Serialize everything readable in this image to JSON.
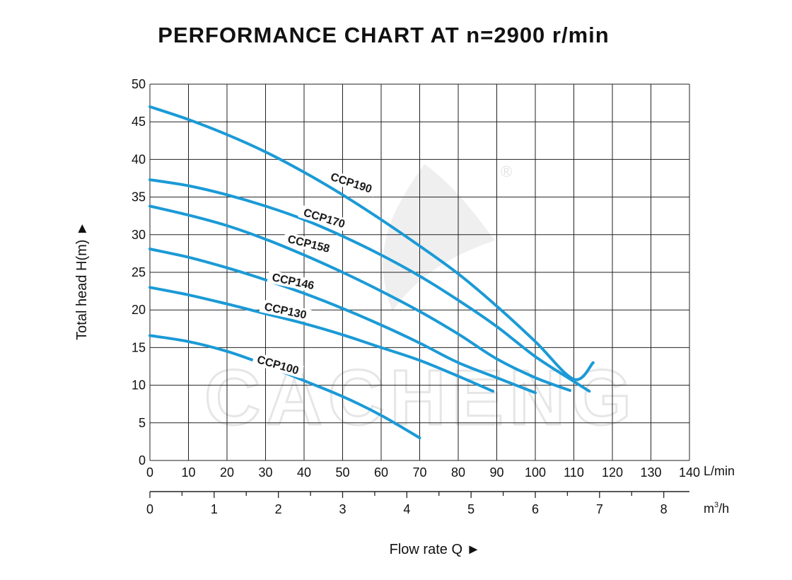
{
  "chart_data": {
    "type": "line",
    "title": "PERFORMANCE CHART AT n=2900 r/min",
    "xlabel": "Flow rate  Q ►",
    "ylabel": "Total  head H(m) ►",
    "x_unit_primary": "L/min",
    "x_unit_secondary_base": "m",
    "x_unit_secondary_sup": "3",
    "x_unit_secondary_tail": "/h",
    "xlim": [
      0,
      140
    ],
    "ylim": [
      0,
      50
    ],
    "x_ticks": [
      0,
      10,
      20,
      30,
      40,
      50,
      60,
      70,
      80,
      90,
      100,
      110,
      120,
      130,
      140
    ],
    "y_ticks": [
      0,
      5,
      10,
      15,
      20,
      25,
      30,
      35,
      40,
      45,
      50
    ],
    "secondary_ticks": [
      0,
      1,
      2,
      3,
      4,
      5,
      6,
      7,
      8
    ],
    "secondary_per_primary": 0.06,
    "grid": true,
    "watermark_text": "CACHENG",
    "watermark_mark": "®",
    "line_color": "#1b9ad6",
    "series": [
      {
        "name": "CCP190",
        "x": [
          0,
          10,
          20,
          30,
          40,
          50,
          60,
          70,
          80,
          90,
          100,
          110,
          115
        ],
        "y": [
          47,
          45.3,
          43.3,
          41,
          38.3,
          35.3,
          32,
          28.5,
          24.8,
          20.5,
          15.8,
          10.8,
          13
        ]
      },
      {
        "name": "CCP170",
        "x": [
          0,
          10,
          20,
          30,
          40,
          50,
          60,
          70,
          80,
          90,
          100,
          110,
          114
        ],
        "y": [
          37.3,
          36.5,
          35.3,
          33.8,
          32,
          29.8,
          27.3,
          24.5,
          21.3,
          17.8,
          13.8,
          10.5,
          9.2
        ]
      },
      {
        "name": "CCP158",
        "x": [
          0,
          10,
          20,
          30,
          40,
          50,
          60,
          70,
          80,
          90,
          100,
          109
        ],
        "y": [
          33.8,
          32.6,
          31.2,
          29.4,
          27.3,
          25,
          22.5,
          19.8,
          16.8,
          13.5,
          11,
          9.3
        ]
      },
      {
        "name": "CCP146",
        "x": [
          0,
          10,
          20,
          30,
          40,
          50,
          60,
          70,
          80,
          90,
          100
        ],
        "y": [
          28.1,
          27,
          25.6,
          24,
          22.2,
          20.2,
          18,
          15.6,
          13,
          11,
          9
        ]
      },
      {
        "name": "CCP130",
        "x": [
          0,
          10,
          20,
          30,
          40,
          50,
          60,
          70,
          80,
          89
        ],
        "y": [
          23,
          22,
          20.8,
          19.5,
          18.2,
          16.7,
          15,
          13.3,
          11.2,
          9.2
        ]
      },
      {
        "name": "CCP100",
        "x": [
          0,
          10,
          20,
          30,
          40,
          50,
          60,
          70
        ],
        "y": [
          16.6,
          15.8,
          14.5,
          12.7,
          10.6,
          8.5,
          6,
          3
        ]
      }
    ],
    "label_positions": [
      {
        "x": 52,
        "y": 36.5,
        "angle": 18
      },
      {
        "x": 45,
        "y": 31.8,
        "angle": 17
      },
      {
        "x": 41,
        "y": 28.4,
        "angle": 14
      },
      {
        "x": 37,
        "y": 23.4,
        "angle": 12
      },
      {
        "x": 35,
        "y": 19.5,
        "angle": 12
      },
      {
        "x": 33,
        "y": 12.3,
        "angle": 16
      }
    ]
  }
}
